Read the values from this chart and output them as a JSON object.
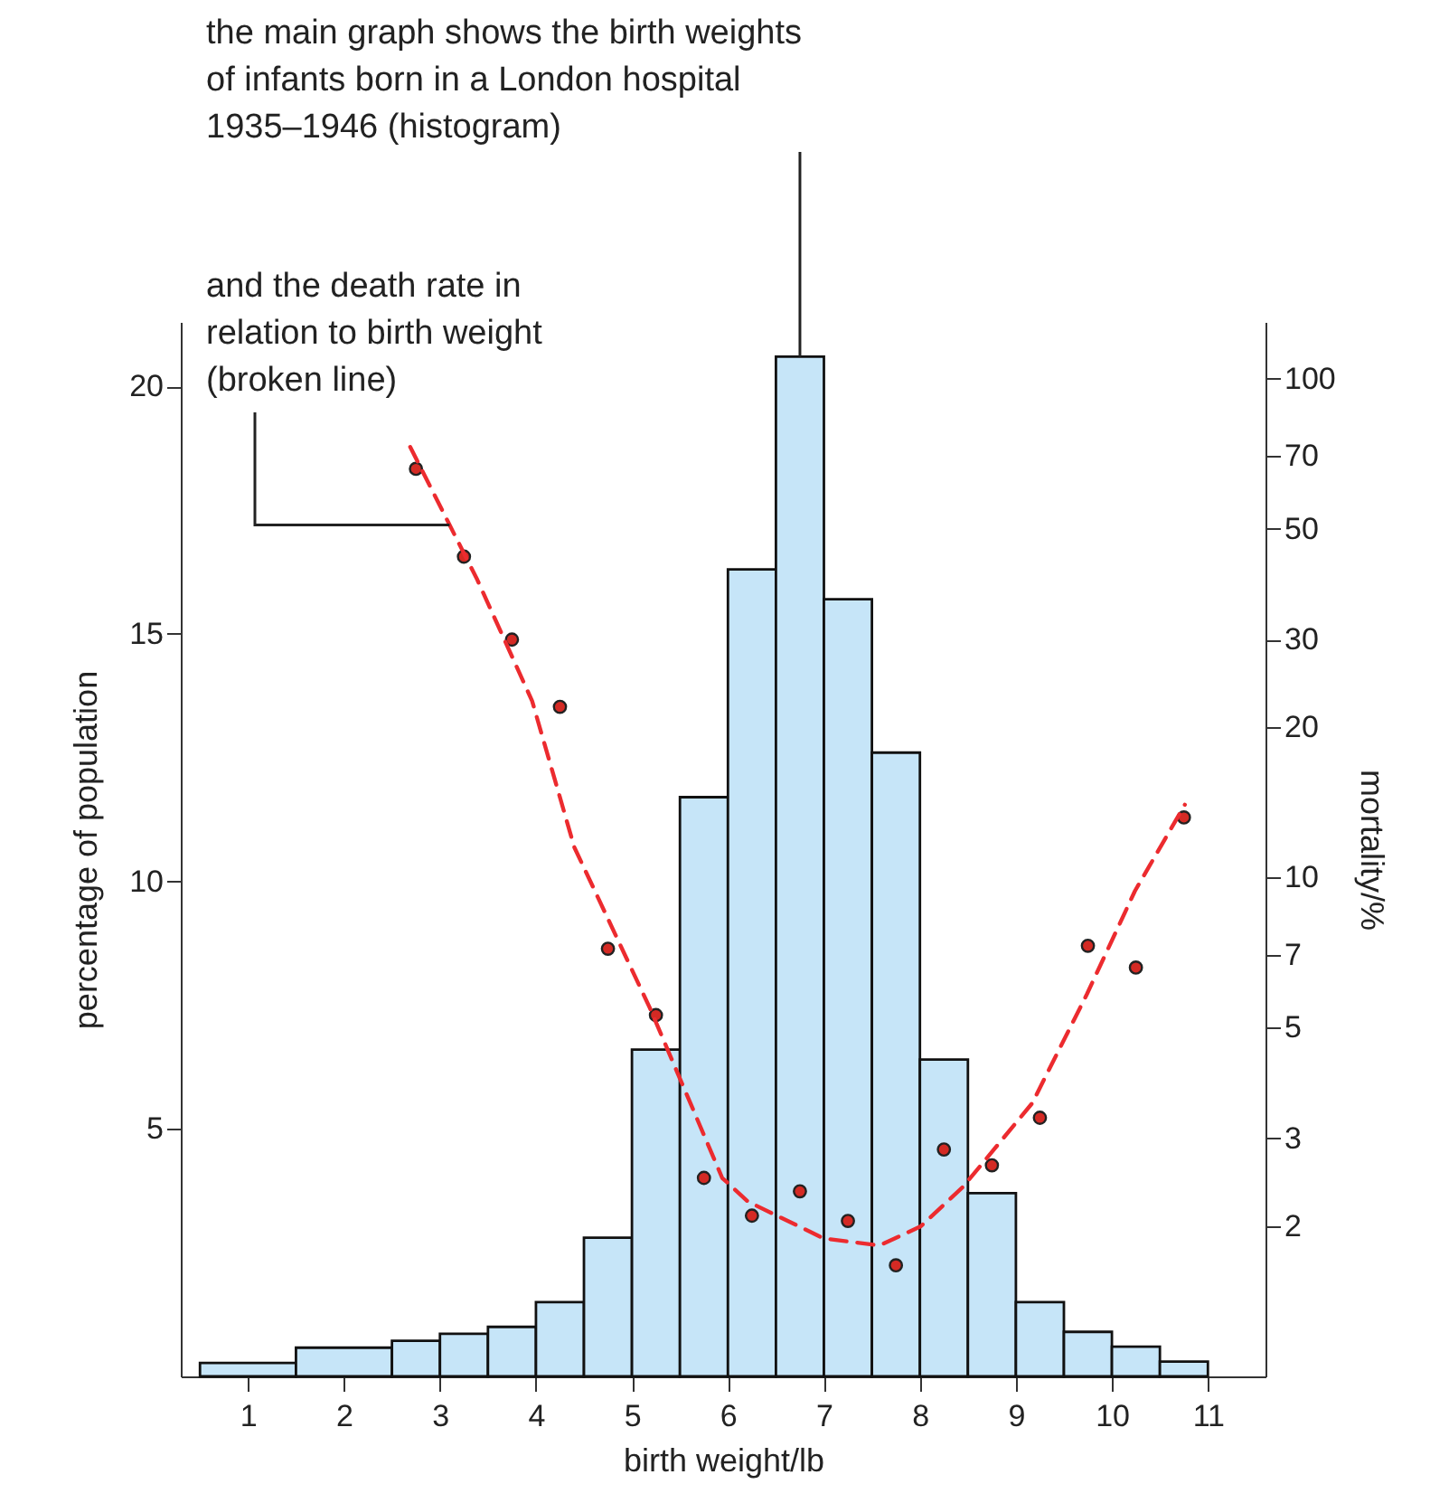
{
  "chart_data": {
    "type": "histogram",
    "xlabel": "birth weight/lb",
    "ylabel": "percentage of population",
    "y2label": "mortality/%",
    "annotations": [
      {
        "text": "the main graph shows the birth weights of infants born in a London hospital 1935–1946 (histogram)",
        "x": 6.75,
        "y": 20.6
      },
      {
        "text": "and the death rate in relation to birth weight (broken line)",
        "x": 3.1,
        "y": 17.2
      }
    ],
    "bins": [
      0.5,
      1.5,
      2.5,
      3,
      3.5,
      4,
      4.5,
      5,
      5.5,
      6,
      6.5,
      7,
      7.5,
      8,
      8.5,
      9,
      9.5,
      10,
      10.5,
      11
    ],
    "values": [
      0.27,
      0.58,
      0.72,
      0.86,
      1.0,
      1.5,
      2.8,
      6.6,
      11.7,
      16.3,
      20.6,
      15.7,
      12.6,
      6.4,
      3.7,
      1.5,
      0.9,
      0.6,
      0.3
    ],
    "color": "#c6e5f8",
    "series": [
      {
        "type": "scatter",
        "axis": "y2",
        "color": "#d42a24",
        "marker": "circle",
        "x": [
          2.75,
          3.25,
          3.75,
          4.25,
          4.75,
          5.25,
          5.75,
          6.25,
          6.75,
          7.25,
          7.75,
          8.25,
          8.75,
          9.25,
          9.75,
          10.25,
          10.75
        ],
        "values": [
          66,
          44,
          30,
          22,
          7.2,
          5.3,
          2.5,
          2.1,
          2.35,
          2.05,
          1.67,
          2.85,
          2.65,
          3.3,
          7.3,
          6.6,
          13.2
        ]
      },
      {
        "type": "line",
        "axis": "y2",
        "color": "#ec2b2f",
        "line_style": "dashed",
        "marker": "none",
        "x": [
          2.69,
          3.39,
          3.96,
          4.4,
          5.19,
          5.94,
          6.21,
          7.0,
          7.58,
          8.01,
          8.45,
          9.17,
          9.74,
          10.24,
          10.76
        ],
        "values": [
          73,
          39.5,
          22.6,
          11.5,
          5.46,
          2.5,
          2.24,
          1.89,
          1.83,
          2.0,
          2.4,
          3.53,
          5.84,
          9.4,
          14
        ]
      }
    ],
    "xlim": [
      0.3,
      11.6
    ],
    "xticks": [
      1,
      2,
      3,
      4,
      5,
      6,
      7,
      8,
      9,
      10,
      11
    ],
    "ylim": [
      0,
      21.3
    ],
    "yticks": [
      5,
      10,
      15,
      20
    ],
    "y2lim": [
      1,
      130
    ],
    "y2ticks": [
      2,
      3,
      5,
      7,
      10,
      20,
      30,
      50,
      70,
      100
    ],
    "log": "y2",
    "grid": false
  }
}
